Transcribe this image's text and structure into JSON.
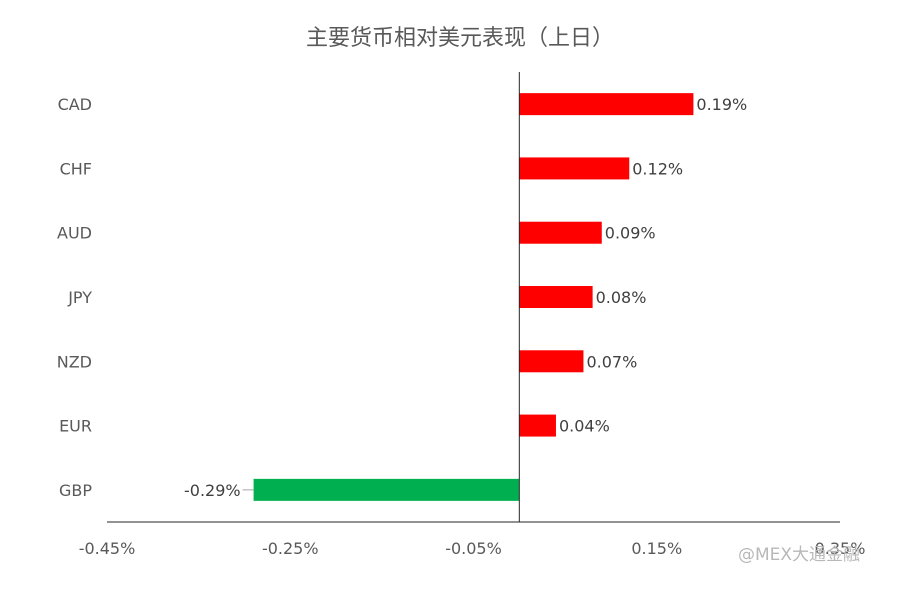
{
  "chart_data": {
    "type": "bar",
    "orientation": "horizontal",
    "title": "主要货币相对美元表现（上日）",
    "categories": [
      "CAD",
      "CHF",
      "AUD",
      "JPY",
      "NZD",
      "EUR",
      "GBP"
    ],
    "values": [
      0.19,
      0.12,
      0.09,
      0.08,
      0.07,
      0.04,
      -0.29
    ],
    "data_labels": [
      "0.19%",
      "0.12%",
      "0.09%",
      "0.08%",
      "0.07%",
      "0.04%",
      "-0.29%"
    ],
    "xlim": [
      -0.45,
      0.35
    ],
    "x_ticks": [
      -0.45,
      -0.25,
      -0.05,
      0.15,
      0.35
    ],
    "x_tick_labels": [
      "-0.45%",
      "-0.25%",
      "-0.05%",
      "0.15%",
      "0.35%"
    ],
    "grid": false,
    "legend": false,
    "colors": {
      "positive": "#ff0000",
      "negative": "#00b050"
    }
  },
  "watermark": "@MEX大通金融"
}
